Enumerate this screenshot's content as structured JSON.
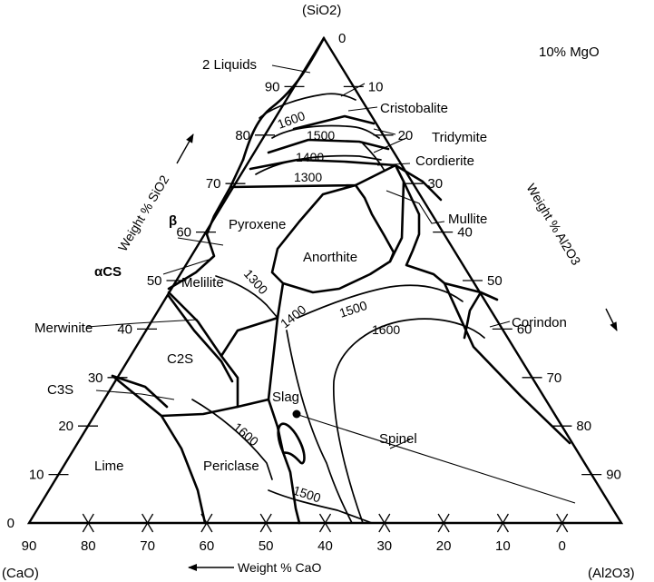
{
  "diagram": {
    "apex_top": "(SiO2)",
    "apex_left": "(CaO)",
    "apex_right": "(Al2O3)",
    "composition_note": "10% MgO",
    "axis_left": "Weight % SiO2",
    "axis_right": "Weight % Al2O3",
    "axis_bottom": "Weight % CaO",
    "left_ticks": [
      "0",
      "10",
      "20",
      "30",
      "40",
      "50",
      "60",
      "70",
      "80",
      "90"
    ],
    "right_ticks": [
      "0",
      "10",
      "20",
      "30",
      "40",
      "50",
      "60",
      "70",
      "80",
      "90"
    ],
    "bottom_ticks": [
      "90",
      "80",
      "70",
      "60",
      "50",
      "40",
      "30",
      "20",
      "10",
      "0"
    ],
    "phase_fields": {
      "two_liquids": "2 Liquids",
      "cristobalite": "Cristobalite",
      "tridymite": "Tridymite",
      "cordierite": "Cordierite",
      "mullite": "Mullite",
      "corindon": "Corindon",
      "spinel": "Spinel",
      "pyroxene": "Pyroxene",
      "anorthite": "Anorthite",
      "melilite": "Melilite",
      "merwinite": "Merwinite",
      "c2s": "C2S",
      "c3s": "C3S",
      "lime": "Lime",
      "periclase": "Periclase",
      "beta": "β",
      "alpha_cs": "αCS"
    },
    "isotherms": {
      "t1600_upper": "1600",
      "t1500_upper": "1500",
      "t1400_upper": "1400",
      "t1300_upper": "1300",
      "t1300_mid": "1300",
      "t1400_mid": "1400",
      "t1500_mid": "1500",
      "t1600_mid": "1600",
      "t1600_lower": "1600",
      "t1500_lower": "1500"
    },
    "point_label": "Slag"
  }
}
